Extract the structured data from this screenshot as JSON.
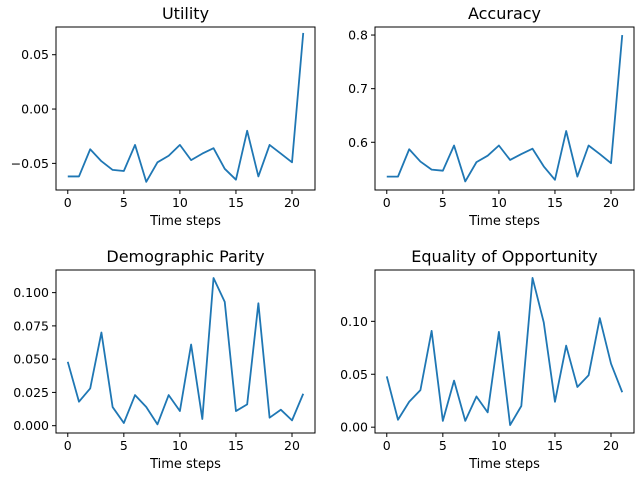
{
  "chart_data": [
    {
      "type": "line",
      "title": "Utility",
      "xlabel": "Time steps",
      "ylabel": "",
      "xlim": [
        -1.05,
        22.05
      ],
      "ylim": [
        -0.0745,
        0.0755
      ],
      "xticks": [
        0,
        5,
        10,
        15,
        20
      ],
      "xtick_labels": [
        "0",
        "5",
        "10",
        "15",
        "20"
      ],
      "yticks": [
        -0.05,
        0.0,
        0.05
      ],
      "ytick_labels": [
        "−0.05",
        "0.00",
        "0.05"
      ],
      "grid": false,
      "series": [
        {
          "color": "#1f77b4",
          "x": [
            0,
            1,
            2,
            3,
            4,
            5,
            6,
            7,
            8,
            9,
            10,
            11,
            12,
            13,
            14,
            15,
            16,
            17,
            18,
            19,
            20,
            21
          ],
          "y": [
            -0.062,
            -0.062,
            -0.037,
            -0.048,
            -0.056,
            -0.057,
            -0.033,
            -0.067,
            -0.049,
            -0.043,
            -0.033,
            -0.047,
            -0.041,
            -0.036,
            -0.055,
            -0.065,
            -0.02,
            -0.062,
            -0.033,
            -0.041,
            -0.049,
            0.07
          ]
        }
      ]
    },
    {
      "type": "line",
      "title": "Accuracy",
      "xlabel": "Time steps",
      "ylabel": "",
      "xlim": [
        -1.05,
        22.05
      ],
      "ylim": [
        0.511,
        0.815
      ],
      "xticks": [
        0,
        5,
        10,
        15,
        20
      ],
      "xtick_labels": [
        "0",
        "5",
        "10",
        "15",
        "20"
      ],
      "yticks": [
        0.6,
        0.7,
        0.8
      ],
      "ytick_labels": [
        "0.6",
        "0.7",
        "0.8"
      ],
      "grid": false,
      "series": [
        {
          "color": "#1f77b4",
          "x": [
            0,
            1,
            2,
            3,
            4,
            5,
            6,
            7,
            8,
            9,
            10,
            11,
            12,
            13,
            14,
            15,
            16,
            17,
            18,
            19,
            20,
            21
          ],
          "y": [
            0.536,
            0.536,
            0.587,
            0.564,
            0.549,
            0.547,
            0.594,
            0.527,
            0.563,
            0.575,
            0.594,
            0.567,
            0.578,
            0.588,
            0.555,
            0.53,
            0.621,
            0.536,
            0.594,
            0.578,
            0.561,
            0.8
          ]
        }
      ]
    },
    {
      "type": "line",
      "title": "Demographic Parity",
      "xlabel": "Time steps",
      "ylabel": "",
      "xlim": [
        -1.05,
        22.05
      ],
      "ylim": [
        -0.0055,
        0.117
      ],
      "xticks": [
        0,
        5,
        10,
        15,
        20
      ],
      "xtick_labels": [
        "0",
        "5",
        "10",
        "15",
        "20"
      ],
      "yticks": [
        0.0,
        0.025,
        0.05,
        0.075,
        0.1
      ],
      "ytick_labels": [
        "0.000",
        "0.025",
        "0.050",
        "0.075",
        "0.100"
      ],
      "grid": false,
      "series": [
        {
          "color": "#1f77b4",
          "x": [
            0,
            1,
            2,
            3,
            4,
            5,
            6,
            7,
            8,
            9,
            10,
            11,
            12,
            13,
            14,
            15,
            16,
            17,
            18,
            19,
            20,
            21
          ],
          "y": [
            0.048,
            0.018,
            0.028,
            0.07,
            0.014,
            0.002,
            0.023,
            0.014,
            0.001,
            0.023,
            0.011,
            0.061,
            0.005,
            0.111,
            0.093,
            0.011,
            0.016,
            0.092,
            0.006,
            0.012,
            0.004,
            0.024
          ]
        }
      ]
    },
    {
      "type": "line",
      "title": "Equality of Opportunity",
      "xlabel": "Time steps",
      "ylabel": "",
      "xlim": [
        -1.05,
        22.05
      ],
      "ylim": [
        -0.0055,
        0.1485
      ],
      "xticks": [
        0,
        5,
        10,
        15,
        20
      ],
      "xtick_labels": [
        "0",
        "5",
        "10",
        "15",
        "20"
      ],
      "yticks": [
        0.0,
        0.05,
        0.1
      ],
      "ytick_labels": [
        "0.00",
        "0.05",
        "0.10"
      ],
      "grid": false,
      "series": [
        {
          "color": "#1f77b4",
          "x": [
            0,
            1,
            2,
            3,
            4,
            5,
            6,
            7,
            8,
            9,
            10,
            11,
            12,
            13,
            14,
            15,
            16,
            17,
            18,
            19,
            20,
            21
          ],
          "y": [
            0.048,
            0.007,
            0.024,
            0.035,
            0.091,
            0.006,
            0.044,
            0.006,
            0.029,
            0.014,
            0.09,
            0.002,
            0.02,
            0.141,
            0.099,
            0.024,
            0.077,
            0.038,
            0.049,
            0.103,
            0.06,
            0.033
          ]
        }
      ]
    }
  ]
}
